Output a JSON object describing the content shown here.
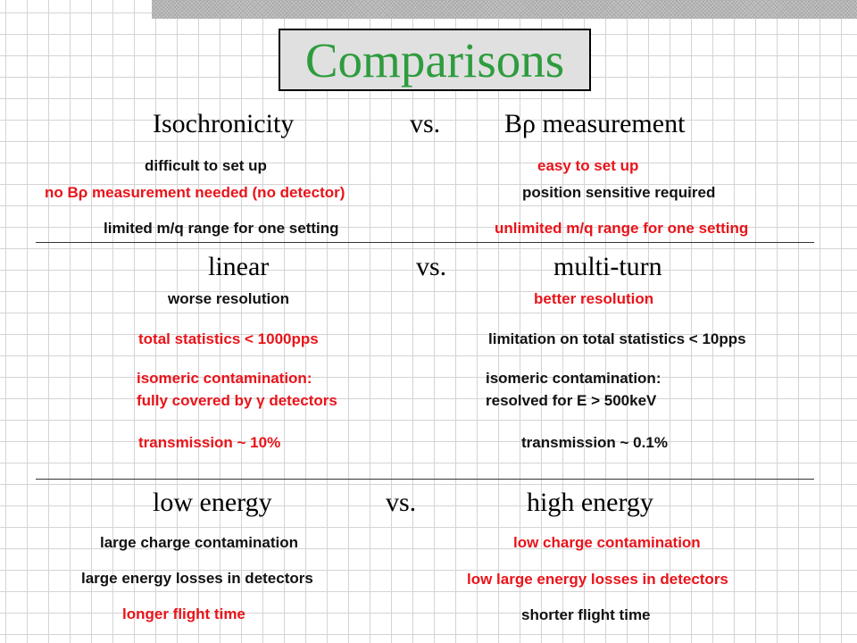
{
  "title": "Comparisons",
  "sections": [
    {
      "heading": {
        "left": "Isochronicity",
        "vs": "vs.",
        "right": "Bρ measurement"
      },
      "rows": [
        {
          "left": "difficult to set up",
          "right": "easy to set up"
        },
        {
          "left": "no Bρ measurement needed (no detector)",
          "right": "position sensitive required"
        },
        {
          "left": "limited m/q range for one setting",
          "right": "unlimited m/q range for one setting"
        }
      ]
    },
    {
      "heading": {
        "left": "linear",
        "vs": "vs.",
        "right": "multi-turn"
      },
      "rows": [
        {
          "left": "worse resolution",
          "right": "better resolution"
        },
        {
          "left": "total statistics < 1000pps",
          "right": "limitation on total statistics < 10pps"
        },
        {
          "left": "isomeric contamination:",
          "right": "isomeric contamination:"
        },
        {
          "left": "fully covered by γ detectors",
          "right": "resolved for E > 500keV"
        },
        {
          "left": "transmission ~ 10%",
          "right": "transmission ~ 0.1%"
        }
      ]
    },
    {
      "heading": {
        "left": "low energy",
        "vs": "vs.",
        "right": "high energy"
      },
      "rows": [
        {
          "left": "large charge contamination",
          "right": "low charge contamination"
        },
        {
          "left": "large energy losses in detectors",
          "right": "low large energy losses in detectors"
        },
        {
          "left": "longer flight time",
          "right": "shorter flight time"
        }
      ]
    }
  ],
  "colors": {
    "title": "#2e9c3e",
    "highlight": "#e8141a",
    "text": "#111111"
  }
}
